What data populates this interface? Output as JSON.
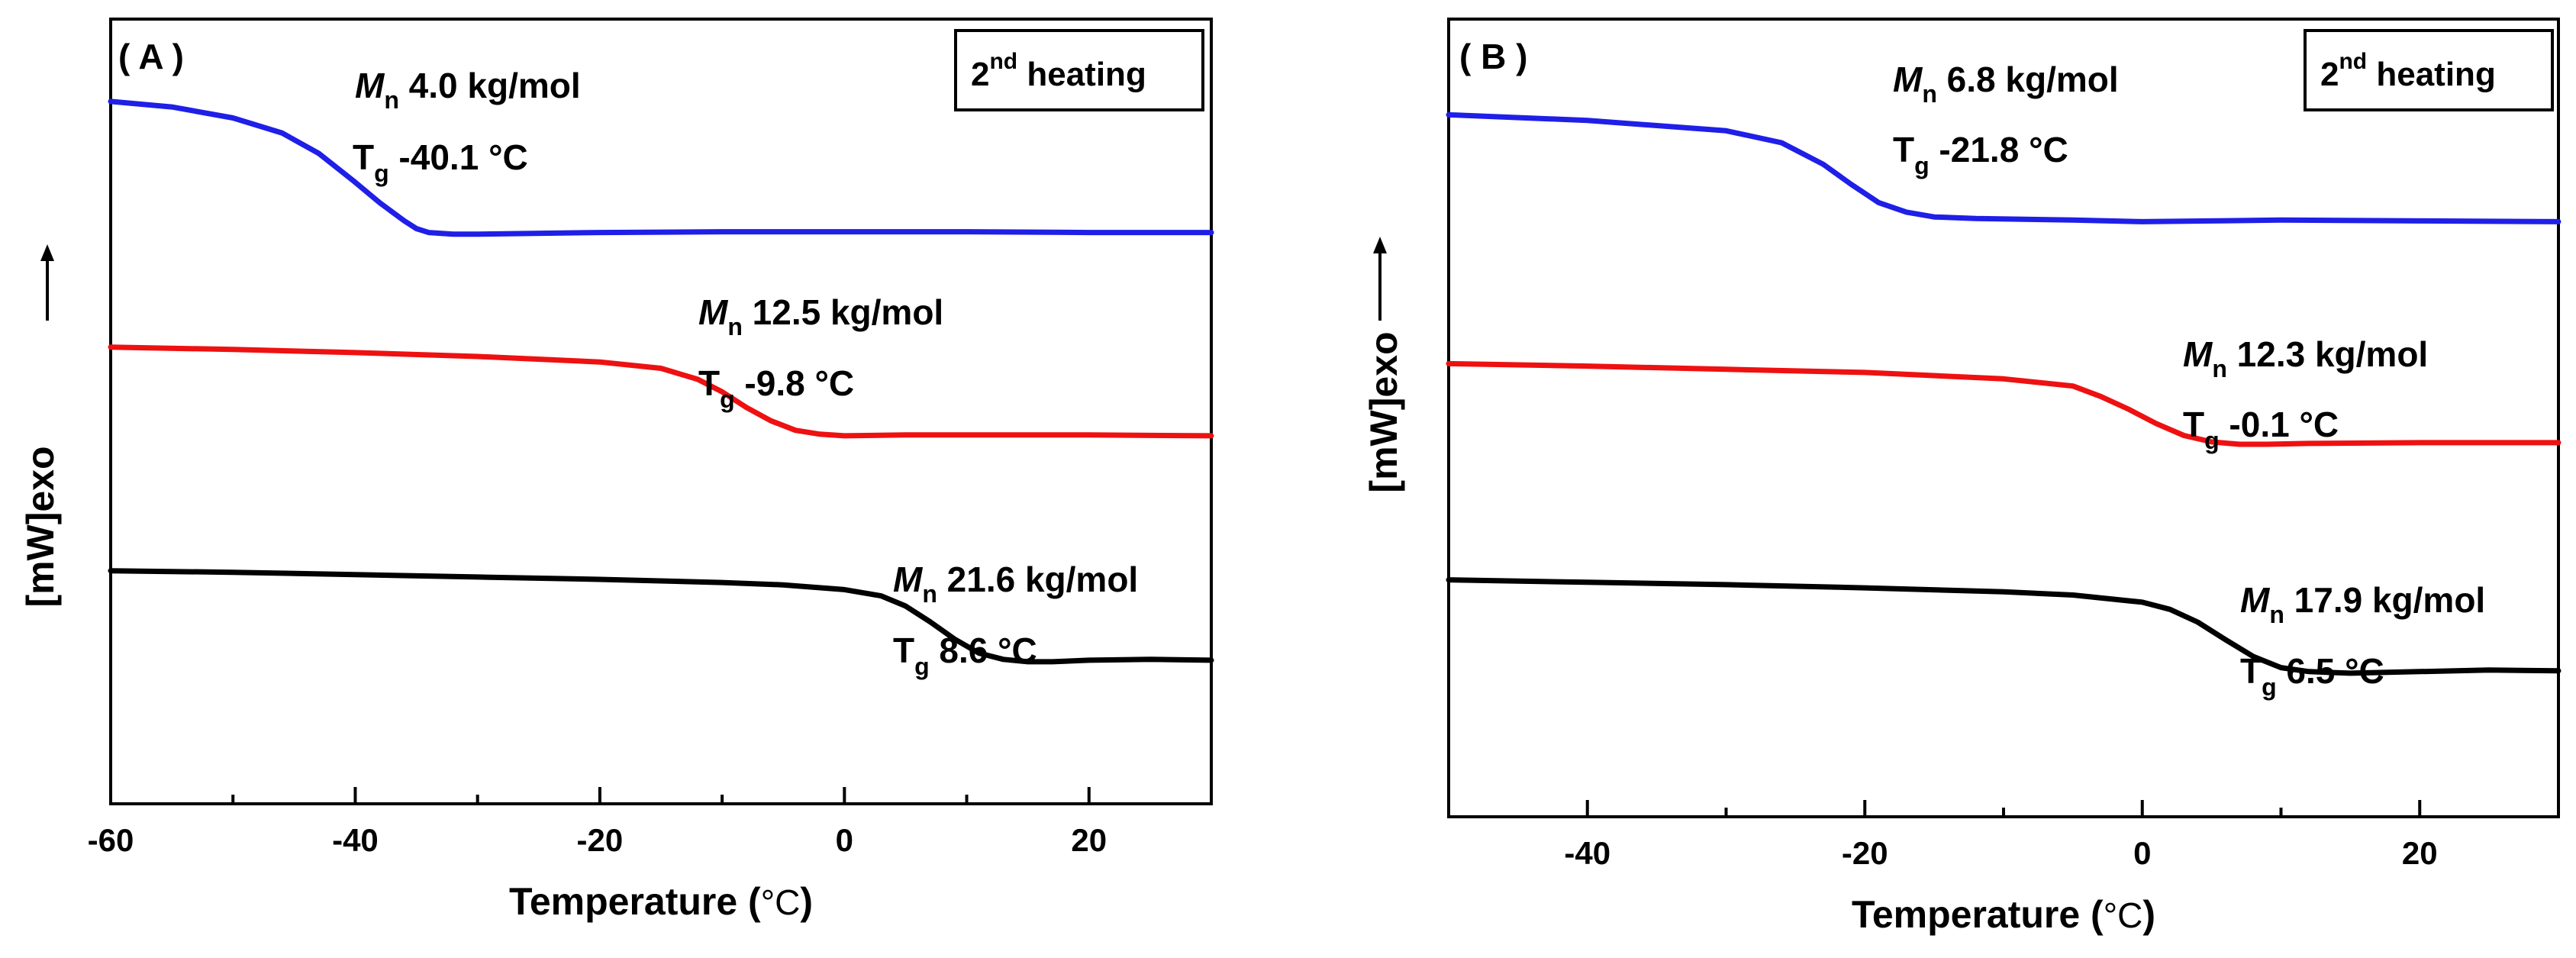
{
  "chart_data": [
    {
      "type": "line",
      "panel_label": "( A )",
      "legend_box": {
        "base": "2",
        "sup": "nd",
        "rest": " heating"
      },
      "xlabel": {
        "text": "Temperature (",
        "unit": "°C",
        "close": ")"
      },
      "ylabel": {
        "text": "[mW]exo",
        "arrow": "↑"
      },
      "xlim": [
        -60,
        30
      ],
      "xticks": [
        -60,
        -40,
        -20,
        0,
        20
      ],
      "xtick_labels": [
        "-60",
        "-40",
        "-20",
        "0",
        "20"
      ],
      "series": [
        {
          "name": "Mn 4.0 kg/mol",
          "color": "#1f1fe8",
          "mn_italic": "M",
          "mn_sub": "n",
          "mn_value": "4.0 kg/mol",
          "tg_main": "T",
          "tg_sub": "g",
          "tg_value": "-40.1 °C",
          "x": [
            -60,
            -55,
            -50,
            -46,
            -43,
            -40,
            -38,
            -36,
            -35,
            -34,
            -32,
            -30,
            -20,
            -10,
            0,
            10,
            20,
            30
          ],
          "y": [
            0.895,
            0.888,
            0.874,
            0.855,
            0.829,
            0.792,
            0.766,
            0.743,
            0.733,
            0.728,
            0.726,
            0.726,
            0.728,
            0.729,
            0.729,
            0.729,
            0.728,
            0.728
          ]
        },
        {
          "name": "Mn 12.5 kg/mol",
          "color": "#ee1111",
          "mn_italic": "M",
          "mn_sub": "n",
          "mn_value": "12.5 kg/mol",
          "tg_main": "T",
          "tg_sub": "g",
          "tg_value": "-9.8 °C",
          "x": [
            -60,
            -50,
            -40,
            -30,
            -20,
            -15,
            -12,
            -10,
            -8,
            -6,
            -4,
            -2,
            0,
            5,
            10,
            20,
            30
          ],
          "y": [
            0.582,
            0.579,
            0.575,
            0.57,
            0.563,
            0.555,
            0.541,
            0.525,
            0.505,
            0.488,
            0.476,
            0.471,
            0.469,
            0.47,
            0.47,
            0.47,
            0.469
          ]
        },
        {
          "name": "Mn 21.6 kg/mol",
          "color": "#000000",
          "mn_italic": "M",
          "mn_sub": "n",
          "mn_value": "21.6 kg/mol",
          "tg_main": "T",
          "tg_sub": "g",
          "tg_value": "8.6 °C",
          "x": [
            -60,
            -50,
            -40,
            -30,
            -20,
            -10,
            -5,
            0,
            3,
            5,
            7,
            9,
            11,
            13,
            15,
            17,
            20,
            25,
            30
          ],
          "y": [
            0.297,
            0.295,
            0.292,
            0.289,
            0.286,
            0.282,
            0.279,
            0.273,
            0.265,
            0.252,
            0.232,
            0.21,
            0.192,
            0.184,
            0.181,
            0.181,
            0.183,
            0.184,
            0.183
          ]
        }
      ]
    },
    {
      "type": "line",
      "panel_label": "( B )",
      "legend_box": {
        "base": "2",
        "sup": "nd",
        "rest": " heating"
      },
      "xlabel": {
        "text": "Temperature (",
        "unit": "°C",
        "close": ")"
      },
      "ylabel": {
        "text": "[mW]exo",
        "arrow": "↑"
      },
      "xlim": [
        -50,
        30
      ],
      "xticks": [
        -40,
        -20,
        0,
        20
      ],
      "xtick_labels": [
        "-40",
        "-20",
        "0",
        "20"
      ],
      "series": [
        {
          "name": "Mn 6.8 kg/mol",
          "color": "#1f1fe8",
          "mn_italic": "M",
          "mn_sub": "n",
          "mn_value": "6.8 kg/mol",
          "tg_main": "T",
          "tg_sub": "g",
          "tg_value": "-21.8 °C",
          "x": [
            -50,
            -40,
            -30,
            -26,
            -23,
            -21,
            -19,
            -17,
            -15,
            -12,
            -5,
            0,
            5,
            10,
            20,
            30
          ],
          "y": [
            0.88,
            0.873,
            0.86,
            0.845,
            0.818,
            0.793,
            0.77,
            0.758,
            0.752,
            0.75,
            0.748,
            0.746,
            0.747,
            0.748,
            0.747,
            0.746
          ]
        },
        {
          "name": "Mn 12.3 kg/mol",
          "color": "#ee1111",
          "mn_italic": "M",
          "mn_sub": "n",
          "mn_value": "12.3 kg/mol",
          "tg_main": "T",
          "tg_sub": "g",
          "tg_value": "-0.1 °C",
          "x": [
            -50,
            -40,
            -30,
            -20,
            -10,
            -5,
            -3,
            -1,
            1,
            3,
            5,
            7,
            9,
            12,
            20,
            30
          ],
          "y": [
            0.568,
            0.565,
            0.561,
            0.557,
            0.549,
            0.54,
            0.527,
            0.511,
            0.493,
            0.478,
            0.47,
            0.467,
            0.467,
            0.468,
            0.469,
            0.469
          ]
        },
        {
          "name": "Mn 17.9 kg/mol",
          "color": "#000000",
          "mn_italic": "M",
          "mn_sub": "n",
          "mn_value": "17.9 kg/mol",
          "tg_main": "T",
          "tg_sub": "g",
          "tg_value": "6.5 °C",
          "x": [
            -50,
            -40,
            -30,
            -20,
            -10,
            -5,
            0,
            2,
            4,
            6,
            8,
            10,
            12,
            15,
            20,
            25,
            30
          ],
          "y": [
            0.297,
            0.294,
            0.291,
            0.287,
            0.282,
            0.278,
            0.269,
            0.26,
            0.244,
            0.222,
            0.201,
            0.187,
            0.182,
            0.18,
            0.182,
            0.184,
            0.183
          ]
        }
      ]
    }
  ]
}
